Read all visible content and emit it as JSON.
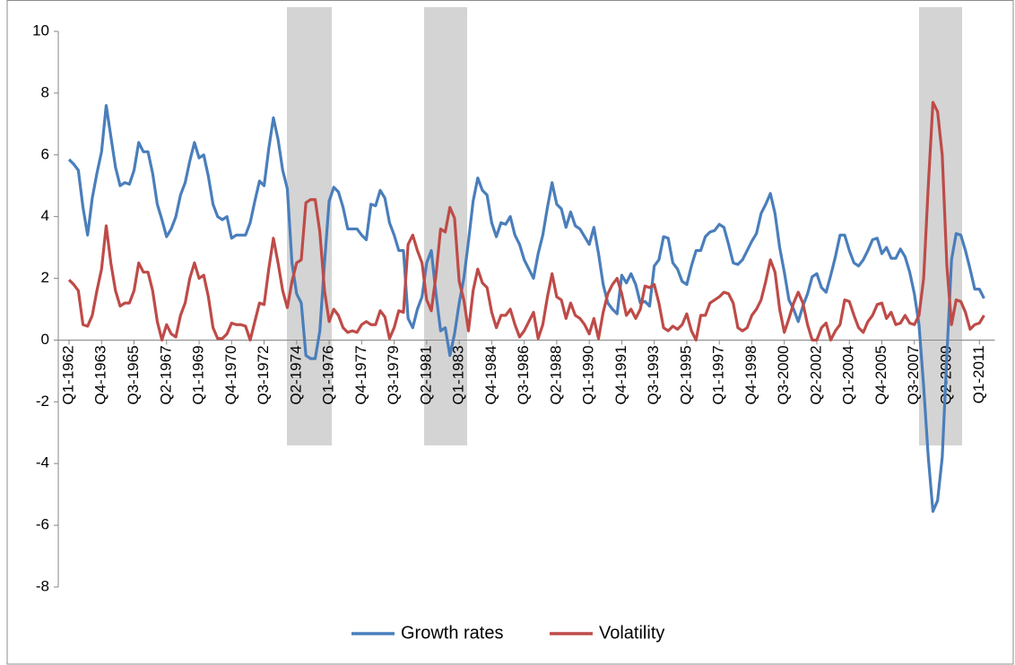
{
  "chart_data": {
    "type": "line",
    "categories": [
      "Q1-1962",
      null,
      null,
      null,
      null,
      null,
      null,
      "Q4-1963",
      null,
      null,
      null,
      null,
      null,
      null,
      "Q3-1965",
      null,
      null,
      null,
      null,
      null,
      null,
      "Q2-1967",
      null,
      null,
      null,
      null,
      null,
      null,
      "Q1-1969",
      null,
      null,
      null,
      null,
      null,
      null,
      "Q4-1970",
      null,
      null,
      null,
      null,
      null,
      null,
      "Q3-1972",
      null,
      null,
      null,
      null,
      null,
      null,
      "Q2-1974",
      null,
      null,
      null,
      null,
      null,
      null,
      "Q1-1976",
      null,
      null,
      null,
      null,
      null,
      null,
      "Q4-1977",
      null,
      null,
      null,
      null,
      null,
      null,
      "Q3-1979",
      null,
      null,
      null,
      null,
      null,
      null,
      "Q2-1981",
      null,
      null,
      null,
      null,
      null,
      null,
      "Q1-1983",
      null,
      null,
      null,
      null,
      null,
      null,
      "Q4-1984",
      null,
      null,
      null,
      null,
      null,
      null,
      "Q3-1986",
      null,
      null,
      null,
      null,
      null,
      null,
      "Q2-1988",
      null,
      null,
      null,
      null,
      null,
      null,
      "Q1-1990",
      null,
      null,
      null,
      null,
      null,
      null,
      "Q4-1991",
      null,
      null,
      null,
      null,
      null,
      null,
      "Q3-1993",
      null,
      null,
      null,
      null,
      null,
      null,
      "Q2-1995",
      null,
      null,
      null,
      null,
      null,
      null,
      "Q1-1997",
      null,
      null,
      null,
      null,
      null,
      null,
      "Q4-1998",
      null,
      null,
      null,
      null,
      null,
      null,
      "Q3-2000",
      null,
      null,
      null,
      null,
      null,
      null,
      "Q2-2002",
      null,
      null,
      null,
      null,
      null,
      null,
      "Q1-2004",
      null,
      null,
      null,
      null,
      null,
      null,
      "Q4-2005",
      null,
      null,
      null,
      null,
      null,
      null,
      "Q3-2007",
      null,
      null,
      null,
      null,
      null,
      null,
      "Q2-2009",
      null,
      null,
      null,
      null,
      null,
      null,
      "Q1-2011",
      null
    ],
    "series": [
      {
        "name": "Growth rates",
        "color": "#4a7ebb",
        "values": [
          5.85,
          5.7,
          5.5,
          4.3,
          3.4,
          4.6,
          5.4,
          6.1,
          7.6,
          6.6,
          5.6,
          5.0,
          5.1,
          5.05,
          5.5,
          6.4,
          6.1,
          6.1,
          5.4,
          4.4,
          3.9,
          3.35,
          3.6,
          4.0,
          4.7,
          5.1,
          5.8,
          6.4,
          5.9,
          6.0,
          5.3,
          4.4,
          4.0,
          3.9,
          4.0,
          3.3,
          3.4,
          3.4,
          3.4,
          3.8,
          4.5,
          5.15,
          5.0,
          6.2,
          7.2,
          6.5,
          5.5,
          4.9,
          2.5,
          1.5,
          1.2,
          -0.5,
          -0.6,
          -0.6,
          0.3,
          2.5,
          4.5,
          4.95,
          4.8,
          4.3,
          3.6,
          3.6,
          3.6,
          3.4,
          3.25,
          4.4,
          4.35,
          4.85,
          4.6,
          3.8,
          3.4,
          2.9,
          2.9,
          0.7,
          0.4,
          1.0,
          1.4,
          2.5,
          2.9,
          1.5,
          0.3,
          0.4,
          -0.5,
          0.2,
          1.2,
          2.0,
          3.2,
          4.5,
          5.25,
          4.85,
          4.7,
          3.8,
          3.35,
          3.8,
          3.75,
          4.0,
          3.4,
          3.1,
          2.6,
          2.3,
          2.0,
          2.8,
          3.4,
          4.3,
          5.1,
          4.4,
          4.25,
          3.65,
          4.15,
          3.7,
          3.6,
          3.35,
          3.1,
          3.65,
          2.8,
          1.8,
          1.2,
          1.0,
          0.85,
          2.1,
          1.85,
          2.15,
          1.8,
          1.2,
          1.25,
          1.1,
          2.4,
          2.6,
          3.35,
          3.3,
          2.5,
          2.3,
          1.9,
          1.8,
          2.4,
          2.9,
          2.9,
          3.35,
          3.5,
          3.55,
          3.75,
          3.65,
          3.1,
          2.5,
          2.45,
          2.6,
          2.9,
          3.2,
          3.45,
          4.1,
          4.4,
          4.75,
          4.1,
          3.0,
          2.2,
          1.3,
          1.0,
          0.6,
          1.1,
          1.5,
          2.05,
          2.15,
          1.7,
          1.55,
          2.1,
          2.7,
          3.4,
          3.4,
          2.9,
          2.5,
          2.4,
          2.6,
          2.9,
          3.25,
          3.3,
          2.8,
          3.0,
          2.65,
          2.65,
          2.95,
          2.7,
          2.2,
          1.5,
          0.5,
          -1.5,
          -3.8,
          -5.55,
          -5.2,
          -3.8,
          -0.5,
          2.6,
          3.45,
          3.4,
          2.9,
          2.3,
          1.65,
          1.65,
          1.35
        ]
      },
      {
        "name": "Volatility",
        "color": "#be4b48",
        "values": [
          1.95,
          1.8,
          1.6,
          0.5,
          0.45,
          0.8,
          1.6,
          2.3,
          3.7,
          2.5,
          1.6,
          1.1,
          1.2,
          1.2,
          1.6,
          2.5,
          2.2,
          2.2,
          1.6,
          0.6,
          0.0,
          0.5,
          0.2,
          0.1,
          0.8,
          1.2,
          2.0,
          2.5,
          2.0,
          2.1,
          1.4,
          0.4,
          0.05,
          0.05,
          0.2,
          0.55,
          0.5,
          0.5,
          0.45,
          0.0,
          0.6,
          1.2,
          1.15,
          2.3,
          3.3,
          2.5,
          1.6,
          1.05,
          1.9,
          2.5,
          2.6,
          4.45,
          4.55,
          4.55,
          3.5,
          1.6,
          0.6,
          1.0,
          0.8,
          0.4,
          0.25,
          0.3,
          0.25,
          0.5,
          0.6,
          0.5,
          0.5,
          0.95,
          0.75,
          0.05,
          0.4,
          0.95,
          0.9,
          3.1,
          3.4,
          2.9,
          2.5,
          1.3,
          0.95,
          2.1,
          3.6,
          3.5,
          4.3,
          3.95,
          1.9,
          1.3,
          0.3,
          1.6,
          2.3,
          1.85,
          1.7,
          0.9,
          0.4,
          0.8,
          0.8,
          1.0,
          0.5,
          0.1,
          0.3,
          0.6,
          0.9,
          0.05,
          0.5,
          1.4,
          2.15,
          1.4,
          1.3,
          0.7,
          1.2,
          0.8,
          0.7,
          0.5,
          0.2,
          0.7,
          0.05,
          0.9,
          1.5,
          1.8,
          2.0,
          1.5,
          0.8,
          1.0,
          0.7,
          1.0,
          1.75,
          1.7,
          1.8,
          1.2,
          0.4,
          0.3,
          0.45,
          0.35,
          0.5,
          0.85,
          0.3,
          0.0,
          0.8,
          0.8,
          1.2,
          1.3,
          1.4,
          1.55,
          1.5,
          1.2,
          0.4,
          0.3,
          0.4,
          0.8,
          1.0,
          1.3,
          1.9,
          2.6,
          2.2,
          1.0,
          0.25,
          0.7,
          1.2,
          1.55,
          1.2,
          0.5,
          0.0,
          0.0,
          0.4,
          0.55,
          0.0,
          0.3,
          0.5,
          1.3,
          1.25,
          0.8,
          0.4,
          0.25,
          0.6,
          0.8,
          1.15,
          1.2,
          0.7,
          0.9,
          0.5,
          0.55,
          0.8,
          0.55,
          0.5,
          0.8,
          2.0,
          5.0,
          7.7,
          7.4,
          6.0,
          2.4,
          0.5,
          1.3,
          1.25,
          0.9,
          0.35,
          0.5,
          0.55,
          0.8
        ]
      }
    ],
    "ylim": [
      -8,
      10
    ],
    "yticks": [
      -8,
      -6,
      -4,
      -2,
      0,
      2,
      4,
      6,
      8,
      10
    ],
    "legend": "bottom"
  }
}
